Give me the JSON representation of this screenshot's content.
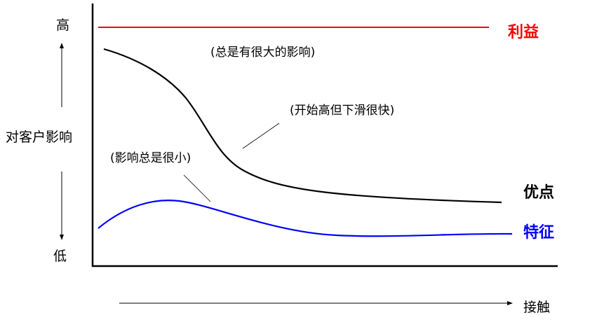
{
  "y_axis": {
    "label": "对客户影响",
    "high": "高",
    "low": "低"
  },
  "x_axis": {
    "label": "接触"
  },
  "series": [
    {
      "name": "利益",
      "color": "#ff0000",
      "annotation": "(总是有很大的影响)"
    },
    {
      "name": "优点",
      "color": "#000000",
      "annotation": "(开始高但下滑很快)"
    },
    {
      "name": "特征",
      "color": "#0000ff",
      "annotation": "(影响总是很小)"
    }
  ]
}
